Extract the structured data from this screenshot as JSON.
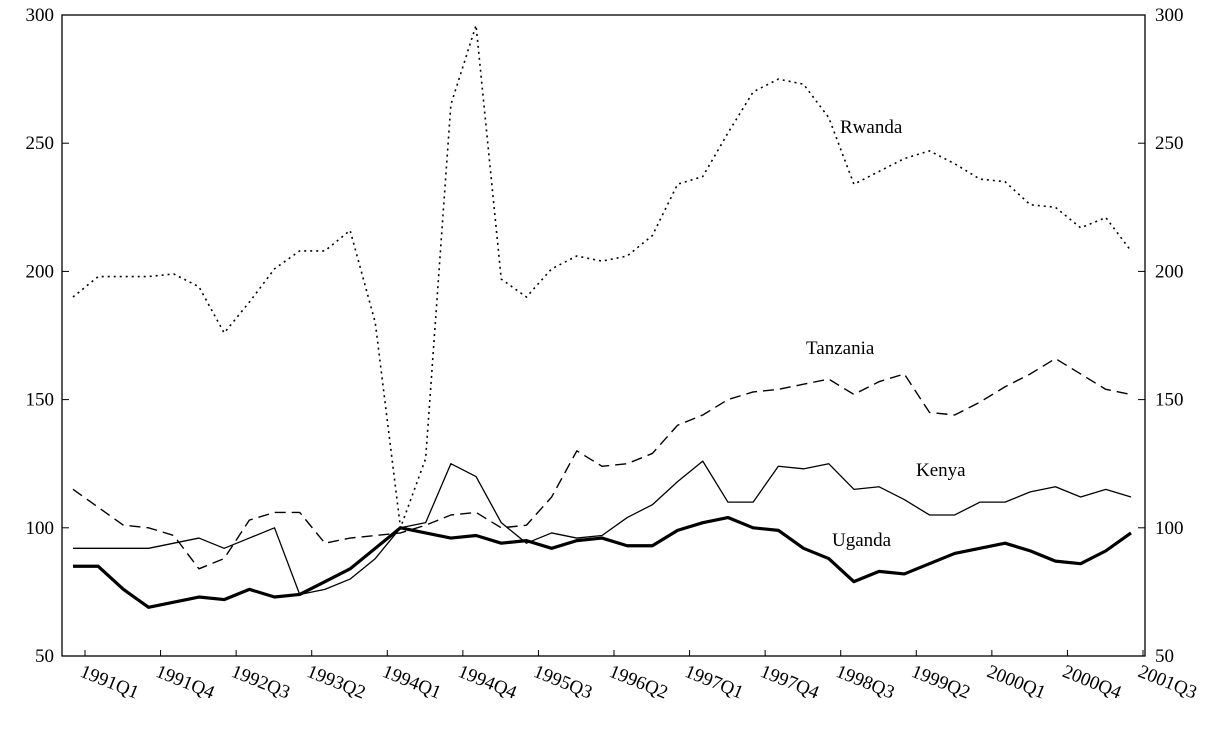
{
  "chart_data": {
    "type": "line",
    "categories": [
      "1991Q1",
      null,
      null,
      "1991Q4",
      null,
      null,
      "1992Q3",
      null,
      null,
      "1993Q2",
      null,
      null,
      "1994Q1",
      null,
      null,
      "1994Q4",
      null,
      null,
      "1995Q3",
      null,
      null,
      "1996Q2",
      null,
      null,
      "1997Q1",
      null,
      null,
      "1997Q4",
      null,
      null,
      "1998Q3",
      null,
      null,
      "1999Q2",
      null,
      null,
      "2000Q1",
      null,
      null,
      "2000Q4",
      null,
      null,
      "2001Q3"
    ],
    "series": [
      {
        "name": "Rwanda",
        "color": "#000000",
        "line_style": "dotted",
        "values": [
          190,
          198,
          198,
          198,
          199,
          194,
          176,
          188,
          201,
          208,
          208,
          216,
          180,
          100,
          127,
          265,
          296,
          197,
          190,
          201,
          206,
          204,
          206,
          214,
          234,
          237,
          254,
          270,
          275,
          273,
          260,
          234,
          239,
          244,
          247,
          242,
          236,
          235,
          226,
          225,
          217,
          221,
          208
        ]
      },
      {
        "name": "Tanzania",
        "color": "#000000",
        "line_style": "dashed",
        "values": [
          115,
          108,
          101,
          100,
          97,
          84,
          88,
          103,
          106,
          106,
          94,
          96,
          97,
          98,
          101,
          105,
          106,
          100,
          101,
          112,
          130,
          124,
          125,
          129,
          140,
          144,
          150,
          153,
          154,
          156,
          158,
          152,
          157,
          160,
          145,
          144,
          149,
          155,
          160,
          166,
          160,
          154,
          152
        ]
      },
      {
        "name": "Kenya",
        "color": "#000000",
        "line_style": "solid",
        "values": [
          92,
          92,
          92,
          92,
          94,
          96,
          92,
          96,
          100,
          74,
          76,
          80,
          88,
          100,
          102,
          125,
          120,
          102,
          94,
          98,
          96,
          97,
          104,
          109,
          118,
          126,
          110,
          110,
          124,
          123,
          125,
          115,
          116,
          111,
          105,
          105,
          110,
          110,
          114,
          116,
          112,
          115,
          112
        ]
      },
      {
        "name": "Uganda",
        "color": "#000000",
        "line_style": "thick",
        "values": [
          85,
          85,
          76,
          69,
          71,
          73,
          72,
          76,
          73,
          74,
          79,
          84,
          92,
          100,
          98,
          96,
          97,
          94,
          95,
          92,
          95,
          96,
          93,
          93,
          99,
          102,
          104,
          100,
          99,
          92,
          88,
          79,
          83,
          82,
          86,
          90,
          92,
          94,
          91,
          87,
          86,
          91,
          98
        ]
      }
    ],
    "ylim": [
      50,
      300
    ],
    "yticks": [
      50,
      100,
      150,
      200,
      250,
      300
    ],
    "grid": false
  }
}
